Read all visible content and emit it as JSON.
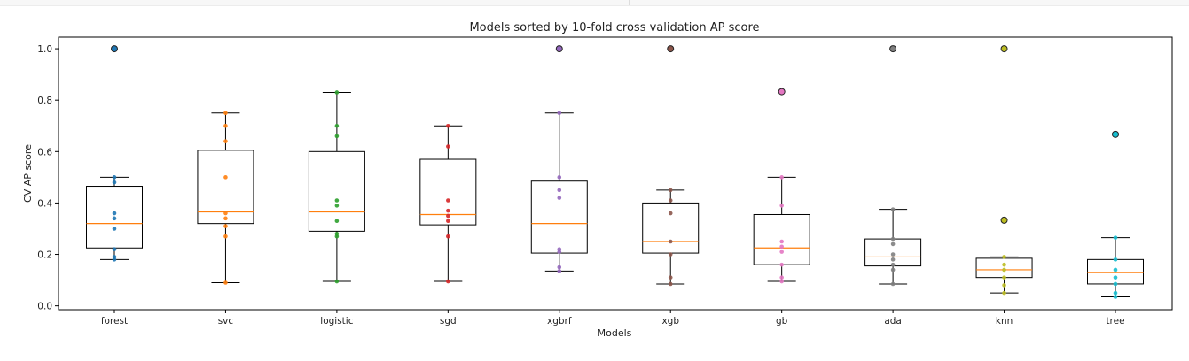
{
  "chart_data": {
    "type": "box",
    "title": "Models sorted by 10-fold cross validation AP score",
    "xlabel": "Models",
    "ylabel": "CV AP score",
    "ylim": [
      -0.015,
      1.045
    ],
    "yticks": [
      0.0,
      0.2,
      0.4,
      0.6,
      0.8,
      1.0
    ],
    "ytick_labels": [
      "0.0",
      "0.2",
      "0.4",
      "0.6",
      "0.8",
      "1.0"
    ],
    "grid": false,
    "categories": [
      "forest",
      "svc",
      "logistic",
      "sgd",
      "xgbrf",
      "xgb",
      "gb",
      "ada",
      "knn",
      "tree"
    ],
    "colors": [
      "#1f77b4",
      "#ff7f0e",
      "#2ca02c",
      "#d62728",
      "#9467bd",
      "#8c564b",
      "#e377c2",
      "#7f7f7f",
      "#bcbd22",
      "#17becf"
    ],
    "median_color": "#ff7f0e",
    "boxes": [
      {
        "name": "forest",
        "whislo": 0.18,
        "q1": 0.225,
        "median": 0.32,
        "q3": 0.465,
        "whishi": 0.5,
        "fliers": [
          1.0
        ]
      },
      {
        "name": "svc",
        "whislo": 0.09,
        "q1": 0.32,
        "median": 0.365,
        "q3": 0.605,
        "whishi": 0.75,
        "fliers": []
      },
      {
        "name": "logistic",
        "whislo": 0.095,
        "q1": 0.29,
        "median": 0.365,
        "q3": 0.6,
        "whishi": 0.83,
        "fliers": []
      },
      {
        "name": "sgd",
        "whislo": 0.095,
        "q1": 0.315,
        "median": 0.355,
        "q3": 0.57,
        "whishi": 0.7,
        "fliers": []
      },
      {
        "name": "xgbrf",
        "whislo": 0.135,
        "q1": 0.205,
        "median": 0.32,
        "q3": 0.485,
        "whishi": 0.75,
        "fliers": [
          1.0
        ]
      },
      {
        "name": "xgb",
        "whislo": 0.085,
        "q1": 0.205,
        "median": 0.25,
        "q3": 0.4,
        "whishi": 0.45,
        "fliers": [
          1.0
        ]
      },
      {
        "name": "gb",
        "whislo": 0.095,
        "q1": 0.16,
        "median": 0.225,
        "q3": 0.355,
        "whishi": 0.5,
        "fliers": [
          0.833
        ]
      },
      {
        "name": "ada",
        "whislo": 0.085,
        "q1": 0.155,
        "median": 0.19,
        "q3": 0.26,
        "whishi": 0.375,
        "fliers": [
          1.0
        ]
      },
      {
        "name": "knn",
        "whislo": 0.05,
        "q1": 0.11,
        "median": 0.14,
        "q3": 0.185,
        "whishi": 0.19,
        "fliers": [
          0.333,
          1.0
        ]
      },
      {
        "name": "tree",
        "whislo": 0.035,
        "q1": 0.085,
        "median": 0.13,
        "q3": 0.18,
        "whishi": 0.265,
        "fliers": [
          0.667
        ]
      }
    ],
    "points": [
      [
        0.18,
        0.19,
        0.22,
        0.3,
        0.34,
        0.36,
        0.48,
        0.5,
        1.0,
        1.0
      ],
      [
        0.09,
        0.27,
        0.31,
        0.34,
        0.36,
        0.5,
        0.64,
        0.7,
        0.75
      ],
      [
        0.095,
        0.27,
        0.28,
        0.33,
        0.39,
        0.41,
        0.66,
        0.7,
        0.83
      ],
      [
        0.095,
        0.27,
        0.33,
        0.35,
        0.37,
        0.41,
        0.62,
        0.7
      ],
      [
        0.135,
        0.15,
        0.21,
        0.22,
        0.42,
        0.45,
        0.5,
        0.75,
        1.0
      ],
      [
        0.085,
        0.11,
        0.2,
        0.25,
        0.36,
        0.41,
        0.45,
        1.0
      ],
      [
        0.095,
        0.11,
        0.16,
        0.21,
        0.23,
        0.25,
        0.39,
        0.5,
        0.833
      ],
      [
        0.085,
        0.14,
        0.16,
        0.18,
        0.2,
        0.24,
        0.26,
        0.375,
        1.0
      ],
      [
        0.05,
        0.08,
        0.11,
        0.14,
        0.16,
        0.19,
        0.333,
        1.0
      ],
      [
        0.035,
        0.05,
        0.085,
        0.11,
        0.14,
        0.18,
        0.265,
        0.667
      ]
    ]
  }
}
